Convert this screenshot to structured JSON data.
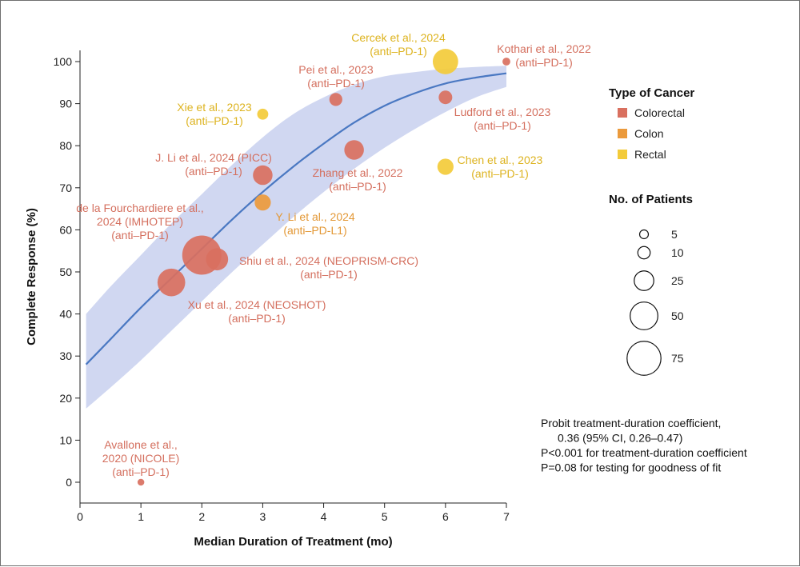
{
  "chart_data": {
    "type": "scatter",
    "xlabel": "Median Duration of Treatment (mo)",
    "ylabel": "Complete Response (%)",
    "xlim": [
      0,
      7
    ],
    "ylim": [
      -5,
      105
    ],
    "xticks": [
      0,
      1,
      2,
      3,
      4,
      5,
      6,
      7
    ],
    "yticks": [
      0,
      10,
      20,
      30,
      40,
      50,
      60,
      70,
      80,
      90,
      100
    ],
    "colors": {
      "Colorectal": "#d9705f",
      "Colon": "#eb9a3c",
      "Rectal": "#f3cb3a",
      "curve": "#4a78c2",
      "band": "#c8d0ee"
    },
    "fit_curve": {
      "description": "probit fit",
      "x": [
        0.1,
        0.5,
        1,
        1.5,
        2,
        2.5,
        3,
        3.5,
        4,
        4.5,
        5,
        5.5,
        6,
        6.5,
        7
      ],
      "y": [
        28,
        34,
        41.5,
        48.5,
        55.5,
        62.5,
        69,
        75,
        80.5,
        85.5,
        89.5,
        92.5,
        94.8,
        96.2,
        97.2
      ],
      "band_upper": [
        40,
        46.5,
        54,
        61.5,
        68.5,
        75.5,
        82,
        87.5,
        91.5,
        94.5,
        96.5,
        97.5,
        98.3,
        98.7,
        99
      ],
      "band_lower": [
        17.5,
        22.5,
        29,
        36,
        43,
        50,
        56.5,
        63,
        69,
        74.5,
        79.5,
        84,
        88,
        91.5,
        94
      ]
    },
    "points": [
      {
        "label": [
          "Avallone et al.,",
          "2020 (NICOLE)",
          "(anti–PD-1)"
        ],
        "x": 1,
        "y": 0,
        "n": 3,
        "type": "Colorectal"
      },
      {
        "label": [
          "Xu et al., 2024 (NEOSHOT)",
          "(anti–PD-1)"
        ],
        "x": 1.5,
        "y": 47.5,
        "n": 50,
        "type": "Colorectal"
      },
      {
        "label": [
          "de la Fourchardiere et al.,",
          "2024 (IMHOTEP)",
          "(anti–PD-1)"
        ],
        "x": 2,
        "y": 54,
        "n": 100,
        "type": "Colorectal"
      },
      {
        "label": [
          "Shiu et al., 2024 (NEOPRISM-CRC)",
          "(anti–PD-1)"
        ],
        "x": 2.25,
        "y": 53,
        "n": 32,
        "type": "Colorectal"
      },
      {
        "label": [
          "J. Li et al., 2024 (PICC)",
          "(anti–PD-1)"
        ],
        "x": 3,
        "y": 73,
        "n": 25,
        "type": "Colorectal"
      },
      {
        "label": [
          "Y. Li et al., 2024",
          "(anti–PD-L1)"
        ],
        "x": 3,
        "y": 66.5,
        "n": 17,
        "type": "Colon"
      },
      {
        "label": [
          "Xie et al., 2023",
          "(anti–PD-1)"
        ],
        "x": 3,
        "y": 87.5,
        "n": 8,
        "type": "Rectal"
      },
      {
        "label": [
          "Pei et al., 2023",
          "(anti–PD-1)"
        ],
        "x": 4.2,
        "y": 91,
        "n": 11,
        "type": "Colorectal"
      },
      {
        "label": [
          "Zhang et al., 2022",
          "(anti–PD-1)"
        ],
        "x": 4.5,
        "y": 79,
        "n": 25,
        "type": "Colorectal"
      },
      {
        "label": [
          "Cercek et al., 2024",
          "(anti–PD-1)"
        ],
        "x": 6,
        "y": 100,
        "n": 42,
        "type": "Rectal"
      },
      {
        "label": [
          "Ludford et al., 2023",
          "(anti–PD-1)"
        ],
        "x": 6,
        "y": 91.5,
        "n": 12,
        "type": "Colorectal"
      },
      {
        "label": [
          "Chen et al., 2023",
          "(anti–PD-1)"
        ],
        "x": 6,
        "y": 75,
        "n": 17,
        "type": "Rectal"
      },
      {
        "label": [
          "Kothari et al., 2022",
          "(anti–PD-1)"
        ],
        "x": 7,
        "y": 100,
        "n": 4,
        "type": "Colorectal"
      }
    ],
    "legend": {
      "type_title": "Type of Cancer",
      "types": [
        {
          "name": "Colorectal",
          "color": "#d9705f"
        },
        {
          "name": "Colon",
          "color": "#eb9a3c"
        },
        {
          "name": "Rectal",
          "color": "#f3cb3a"
        }
      ],
      "size_title": "No. of Patients",
      "sizes": [
        5,
        10,
        25,
        50,
        75
      ]
    },
    "annotation": [
      "Probit treatment-duration coefficient,",
      "    0.36 (95% CI, 0.26–0.47)",
      "P<0.001 for treatment-duration coefficient",
      "P=0.08 for testing for goodness of fit"
    ]
  }
}
